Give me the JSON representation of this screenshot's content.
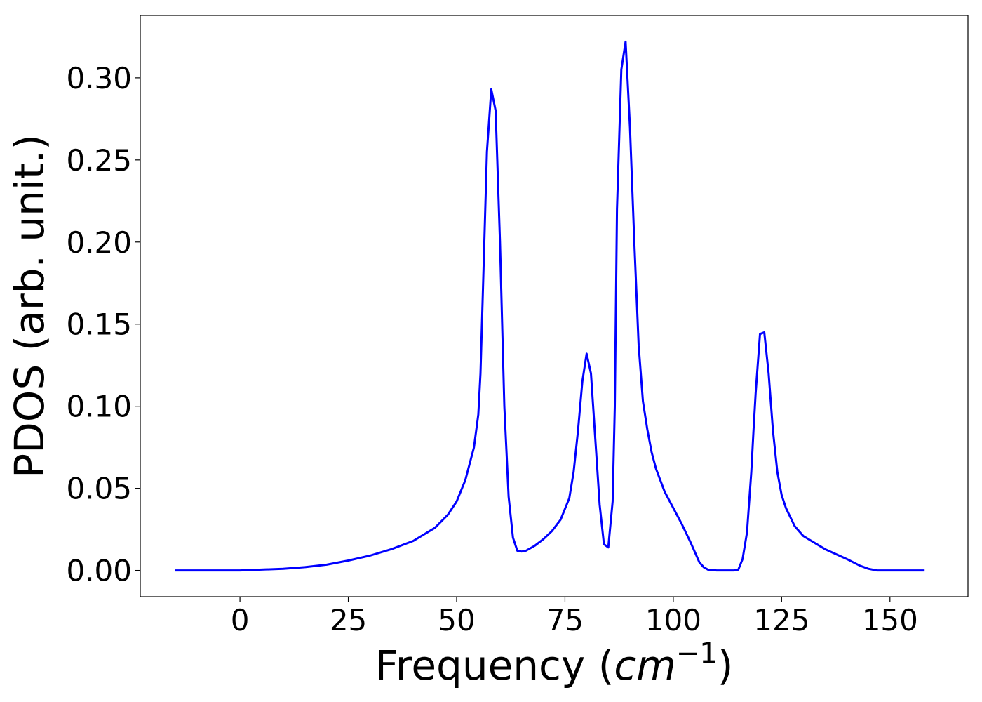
{
  "chart_data": {
    "type": "line",
    "title": "",
    "xlabel_main": "Frequency (",
    "xlabel_math": "cm",
    "xlabel_sup": "−1",
    "xlabel_close": ")",
    "ylabel": "PDOS (arb. unit.)",
    "xlim": [
      -23,
      168
    ],
    "ylim": [
      -0.016,
      0.338
    ],
    "xticks": [
      0,
      25,
      50,
      75,
      100,
      125,
      150
    ],
    "xtick_labels": [
      "0",
      "25",
      "50",
      "75",
      "100",
      "125",
      "150"
    ],
    "yticks": [
      0.0,
      0.05,
      0.1,
      0.15,
      0.2,
      0.25,
      0.3
    ],
    "ytick_labels": [
      "0.00",
      "0.05",
      "0.10",
      "0.15",
      "0.20",
      "0.25",
      "0.30"
    ],
    "grid": false,
    "colors": {
      "line": "#0000ff",
      "axes": "#000000",
      "background": "#ffffff"
    },
    "series": [
      {
        "x": [
          -15,
          0,
          5,
          10,
          15,
          20,
          25,
          30,
          35,
          40,
          45,
          48,
          50,
          52,
          54,
          55,
          55.5,
          56,
          57,
          58,
          59,
          60,
          61,
          62,
          63,
          64,
          65,
          66,
          68,
          70,
          72,
          74,
          76,
          77,
          78,
          79,
          80,
          81,
          82,
          83,
          84,
          85,
          86,
          86.5,
          87,
          88,
          89,
          90,
          91,
          92,
          93,
          94,
          95,
          96,
          98,
          100,
          102,
          104,
          106,
          107,
          108,
          110,
          112,
          114,
          115,
          116,
          117,
          118,
          118.5,
          119,
          120,
          121,
          122,
          123,
          124,
          125,
          126,
          128,
          130,
          135,
          140,
          143,
          145,
          147,
          150,
          158
        ],
        "y": [
          0.0,
          0.0,
          0.0005,
          0.001,
          0.002,
          0.0035,
          0.006,
          0.009,
          0.013,
          0.018,
          0.026,
          0.034,
          0.042,
          0.055,
          0.075,
          0.095,
          0.12,
          0.165,
          0.255,
          0.293,
          0.28,
          0.2,
          0.1,
          0.045,
          0.02,
          0.012,
          0.0115,
          0.012,
          0.015,
          0.019,
          0.024,
          0.031,
          0.044,
          0.06,
          0.085,
          0.115,
          0.132,
          0.12,
          0.08,
          0.04,
          0.016,
          0.014,
          0.042,
          0.1,
          0.22,
          0.305,
          0.322,
          0.27,
          0.2,
          0.137,
          0.103,
          0.086,
          0.072,
          0.062,
          0.048,
          0.038,
          0.028,
          0.017,
          0.005,
          0.002,
          0.0005,
          0.0,
          0.0,
          0.0,
          0.0005,
          0.007,
          0.023,
          0.06,
          0.085,
          0.108,
          0.144,
          0.145,
          0.12,
          0.085,
          0.06,
          0.046,
          0.038,
          0.027,
          0.021,
          0.013,
          0.007,
          0.003,
          0.001,
          0.0,
          0.0,
          0.0
        ]
      }
    ]
  }
}
